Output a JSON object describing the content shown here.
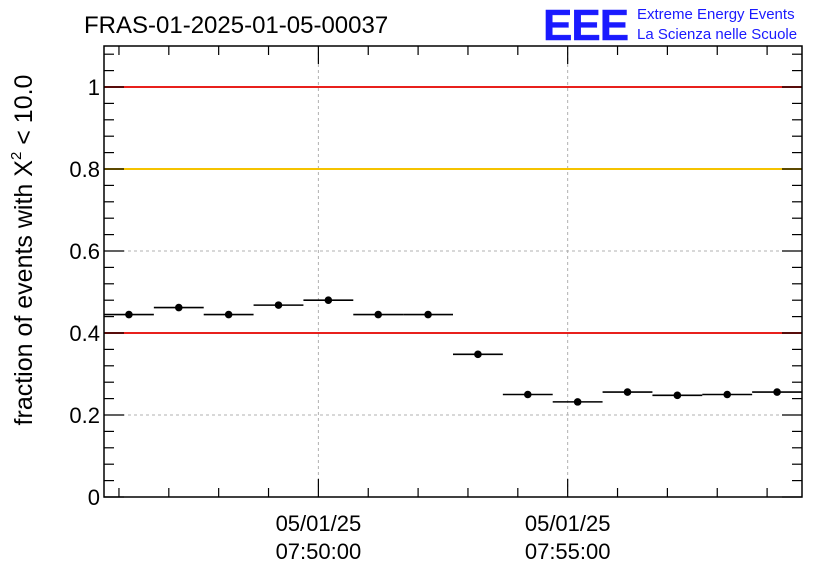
{
  "chart_data": {
    "type": "scatter",
    "title": "FRAS-01-2025-01-05-00037",
    "ylabel": {
      "prefix": "fraction of events with ",
      "symbol": "X",
      "superscript": "2",
      "suffix": " < 10.0"
    },
    "xlabel": "",
    "xlim_minutes": [
      -4.3,
      9.7
    ],
    "ylim": [
      0,
      1.1
    ],
    "grid": true,
    "y_ticks": [
      {
        "value": 0,
        "label": "0"
      },
      {
        "value": 0.2,
        "label": "0.2"
      },
      {
        "value": 0.4,
        "label": "0.4"
      },
      {
        "value": 0.6,
        "label": "0.6"
      },
      {
        "value": 0.8,
        "label": "0.8"
      },
      {
        "value": 1.0,
        "label": "1"
      }
    ],
    "x_ticks": [
      {
        "minute": 0,
        "date": "05/01/25",
        "time": "07:50:00"
      },
      {
        "minute": 5,
        "date": "05/01/25",
        "time": "07:55:00"
      }
    ],
    "reference_lines": [
      {
        "y": 1.0,
        "color": "#e8201c"
      },
      {
        "y": 0.8,
        "color": "#f5c300"
      },
      {
        "y": 0.4,
        "color": "#e8201c"
      }
    ],
    "series": [
      {
        "color": "#000000",
        "bin_width_minutes": 1,
        "points": [
          {
            "x": -3.8,
            "y": 0.445
          },
          {
            "x": -2.8,
            "y": 0.462
          },
          {
            "x": -1.8,
            "y": 0.445
          },
          {
            "x": -0.8,
            "y": 0.468
          },
          {
            "x": 0.2,
            "y": 0.48
          },
          {
            "x": 1.2,
            "y": 0.445
          },
          {
            "x": 2.2,
            "y": 0.445
          },
          {
            "x": 3.2,
            "y": 0.348
          },
          {
            "x": 4.2,
            "y": 0.25
          },
          {
            "x": 5.2,
            "y": 0.232
          },
          {
            "x": 6.2,
            "y": 0.256
          },
          {
            "x": 7.2,
            "y": 0.248
          },
          {
            "x": 8.2,
            "y": 0.25
          },
          {
            "x": 9.2,
            "y": 0.256
          }
        ]
      }
    ]
  },
  "logo": {
    "letters": "EEE",
    "line1": "Extreme Energy Events",
    "line2": "La Scienza nelle Scuole",
    "color": "#1a1aff"
  }
}
